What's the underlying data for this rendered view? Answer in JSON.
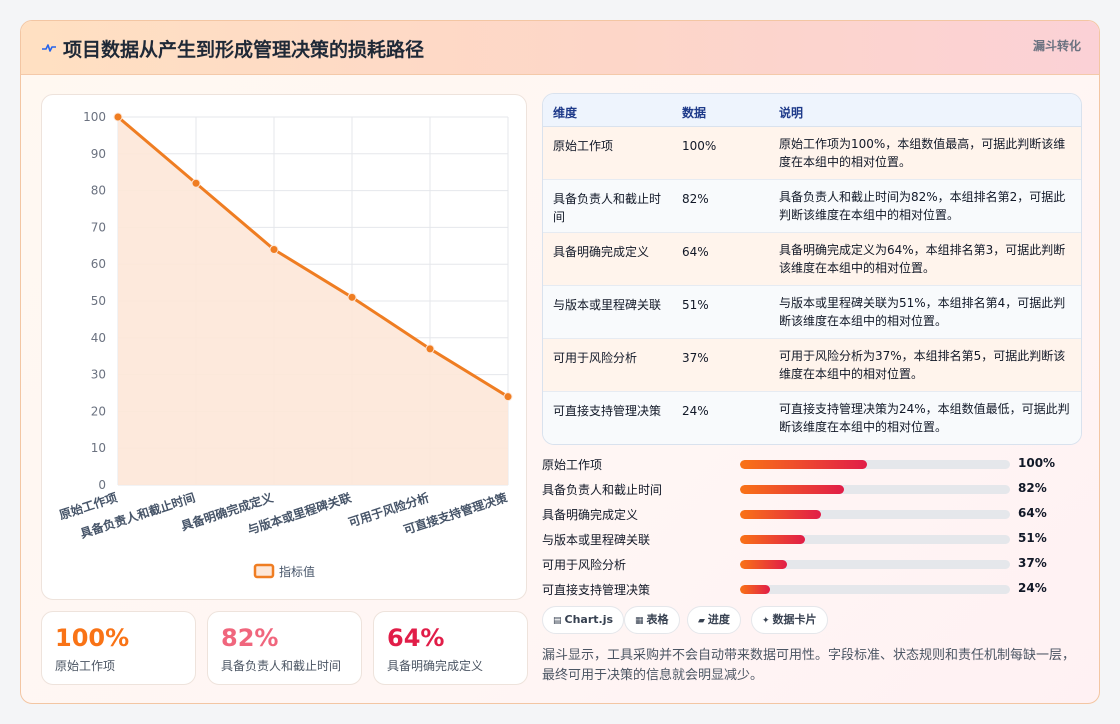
{
  "header": {
    "title": "项目数据从产生到形成管理决策的损耗路径",
    "badge": "漏斗转化"
  },
  "chart_data": {
    "type": "line",
    "categories": [
      "原始工作项",
      "具备负责人和截止时间",
      "具备明确完成定义",
      "与版本或里程碑关联",
      "可用于风险分析",
      "可直接支持管理决策"
    ],
    "series": [
      {
        "name": "指标值",
        "values": [
          100,
          82,
          64,
          51,
          37,
          24
        ]
      }
    ],
    "ylim": [
      0,
      100
    ],
    "yticks": [
      0,
      10,
      20,
      30,
      40,
      50,
      60,
      70,
      80,
      90,
      100
    ],
    "title": "",
    "xlabel": "",
    "ylabel": "",
    "grid": true,
    "legend": "bottom",
    "colors": {
      "line": "#ef7d22",
      "fill": "#fde7d8"
    }
  },
  "stats": [
    {
      "value": "100%",
      "label": "原始工作项",
      "color": "#f97316"
    },
    {
      "value": "82%",
      "label": "具备负责人和截止时间",
      "color": "#f0667d"
    },
    {
      "value": "64%",
      "label": "具备明确完成定义",
      "color": "#e11d48"
    }
  ],
  "table": {
    "headers": [
      "维度",
      "数据",
      "说明"
    ],
    "rows": [
      {
        "dim": "原始工作项",
        "data": "100%",
        "desc": "原始工作项为100%，本组数值最高，可据此判断该维度在本组中的相对位置。",
        "bg": "#fff4ec"
      },
      {
        "dim": "具备负责人和截止时间",
        "data": "82%",
        "desc": "具备负责人和截止时间为82%，本组排名第2，可据此判断该维度在本组中的相对位置。",
        "bg": "#f8fafc"
      },
      {
        "dim": "具备明确完成定义",
        "data": "64%",
        "desc": "具备明确完成定义为64%，本组排名第3，可据此判断该维度在本组中的相对位置。",
        "bg": "#fff4ec"
      },
      {
        "dim": "与版本或里程碑关联",
        "data": "51%",
        "desc": "与版本或里程碑关联为51%，本组排名第4，可据此判断该维度在本组中的相对位置。",
        "bg": "#f8fafc"
      },
      {
        "dim": "可用于风险分析",
        "data": "37%",
        "desc": "可用于风险分析为37%，本组排名第5，可据此判断该维度在本组中的相对位置。",
        "bg": "#fff4ec"
      },
      {
        "dim": "可直接支持管理决策",
        "data": "24%",
        "desc": "可直接支持管理决策为24%，本组数值最低，可据此判断该维度在本组中的相对位置。",
        "bg": "#f8fafc"
      }
    ]
  },
  "progress": [
    {
      "label": "原始工作项",
      "text": "100%",
      "fraction": 0.47
    },
    {
      "label": "具备负责人和截止时间",
      "text": "82%",
      "fraction": 0.385
    },
    {
      "label": "具备明确完成定义",
      "text": "64%",
      "fraction": 0.3
    },
    {
      "label": "与版本或里程碑关联",
      "text": "51%",
      "fraction": 0.24
    },
    {
      "label": "可用于风险分析",
      "text": "37%",
      "fraction": 0.175
    },
    {
      "label": "可直接支持管理决策",
      "text": "24%",
      "fraction": 0.11
    }
  ],
  "tags": [
    {
      "icon": "▤",
      "icon_name": "chart-icon",
      "label": "Chart.js"
    },
    {
      "icon": "▦",
      "icon_name": "table-icon",
      "label": "表格"
    },
    {
      "icon": "▰",
      "icon_name": "progress-icon",
      "label": "进度"
    },
    {
      "icon": "✦",
      "icon_name": "sparkle-icon",
      "label": "数据卡片"
    }
  ],
  "note": "漏斗显示，工具采购并不会自动带来数据可用性。字段标准、状态规则和责任机制每缺一层，最终可用于决策的信息就会明显减少。"
}
